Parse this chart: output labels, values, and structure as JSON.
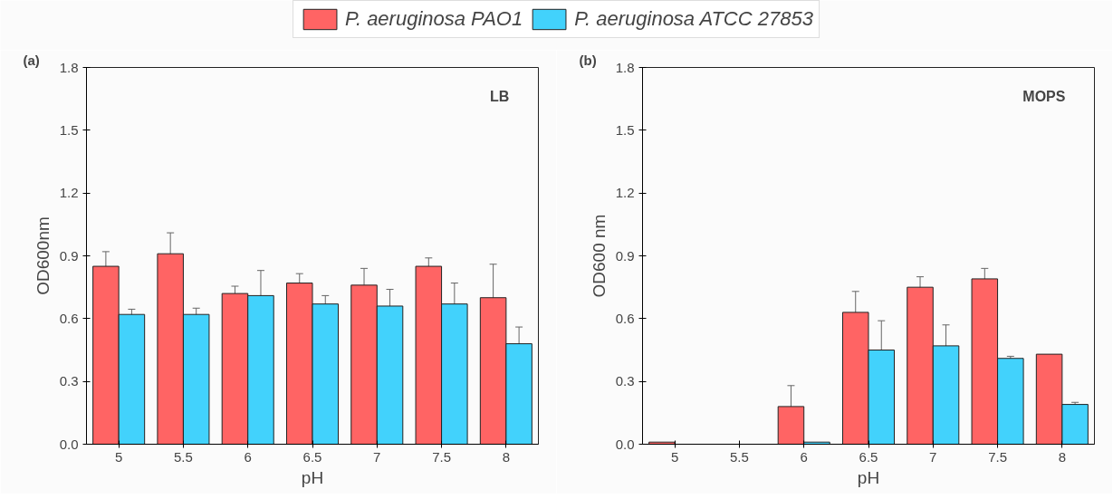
{
  "chart_data": [
    {
      "type": "bar",
      "categories": [
        "5",
        "5.5",
        "6",
        "6.5",
        "7",
        "7.5",
        "8"
      ],
      "xlabel": "pH",
      "ylabel": "OD600nm",
      "annotations": [
        "(a)",
        "LB"
      ],
      "ylim": [
        0,
        1.8
      ],
      "yticks": [
        {
          "value": 0,
          "label": "0.0"
        },
        {
          "value": 0.3,
          "label": "0.3"
        },
        {
          "value": 0.6,
          "label": "0.6"
        },
        {
          "value": 0.9,
          "label": "0.9"
        },
        {
          "value": 1.2,
          "label": "1.2"
        },
        {
          "value": 1.5,
          "label": "1.5"
        },
        {
          "value": 1.8,
          "label": "1.8"
        }
      ],
      "legend": "top",
      "grid": false,
      "series": [
        {
          "name": "P. aeruginosa PAO1",
          "color": "#ff6464",
          "values": [
            0.85,
            0.91,
            0.72,
            0.77,
            0.76,
            0.85,
            0.7
          ],
          "errors": [
            0.07,
            0.1,
            0.035,
            0.045,
            0.08,
            0.04,
            0.16
          ]
        },
        {
          "name": "P. aeruginosa ATCC 27853",
          "color": "#42d2fc",
          "values": [
            0.62,
            0.62,
            0.71,
            0.67,
            0.66,
            0.67,
            0.48
          ],
          "errors": [
            0.025,
            0.03,
            0.12,
            0.04,
            0.08,
            0.1,
            0.08
          ]
        }
      ]
    },
    {
      "type": "bar",
      "categories": [
        "5",
        "5.5",
        "6",
        "6.5",
        "7",
        "7.5",
        "8"
      ],
      "xlabel": "pH",
      "ylabel": "OD600 nm",
      "annotations": [
        "(b)",
        "MOPS"
      ],
      "ylim": [
        0,
        1.8
      ],
      "yticks": [
        {
          "value": 0,
          "label": "0.0"
        },
        {
          "value": 0.3,
          "label": "0.3"
        },
        {
          "value": 0.6,
          "label": "0.6"
        },
        {
          "value": 0.9,
          "label": "0.9"
        },
        {
          "value": 1.2,
          "label": "1.2"
        },
        {
          "value": 1.5,
          "label": "1.5"
        },
        {
          "value": 1.8,
          "label": "1.8"
        }
      ],
      "grid": false,
      "series": [
        {
          "color": "#ff6464",
          "values": [
            0.01,
            null,
            0.18,
            0.63,
            0.75,
            0.79,
            0.43
          ],
          "errors": [
            null,
            null,
            0.1,
            0.1,
            0.05,
            0.05,
            null
          ]
        },
        {
          "color": "#42d2fc",
          "values": [
            null,
            null,
            0.01,
            0.45,
            0.47,
            0.41,
            0.19
          ],
          "errors": [
            null,
            null,
            null,
            0.14,
            0.1,
            0.01,
            0.01
          ]
        }
      ]
    }
  ]
}
